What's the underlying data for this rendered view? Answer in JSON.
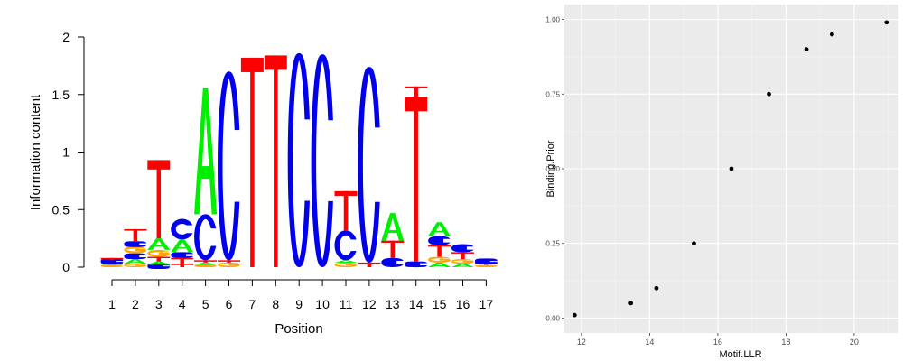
{
  "chart_data": [
    {
      "type": "sequence-logo",
      "xlabel": "Position",
      "ylabel": "Information content",
      "ylim": [
        0,
        2
      ],
      "yticks": [
        "0",
        "0.5",
        "1",
        "1.5",
        "2"
      ],
      "positions": [
        "1",
        "2",
        "3",
        "4",
        "5",
        "6",
        "7",
        "8",
        "9",
        "10",
        "11",
        "12",
        "13",
        "14",
        "15",
        "16",
        "17"
      ],
      "colors": {
        "A": "#00ee00",
        "C": "#0000ee",
        "G": "#ffa500",
        "T": "#ff0000"
      },
      "stacks": [
        [
          {
            "l": "G",
            "h": 0.02
          },
          {
            "l": "A",
            "h": 0.02
          },
          {
            "l": "C",
            "h": 0.02
          },
          {
            "l": "T",
            "h": 0.02
          }
        ],
        [
          {
            "l": "G",
            "h": 0.03
          },
          {
            "l": "A",
            "h": 0.04
          },
          {
            "l": "C",
            "h": 0.05
          },
          {
            "l": "G",
            "h": 0.06
          },
          {
            "l": "C",
            "h": 0.04
          },
          {
            "l": "T",
            "h": 0.11
          }
        ],
        [
          {
            "l": "C",
            "h": 0.02
          },
          {
            "l": "A",
            "h": 0.03
          },
          {
            "l": "T",
            "h": 0.04
          },
          {
            "l": "G",
            "h": 0.06
          },
          {
            "l": "A",
            "h": 0.1
          },
          {
            "l": "T",
            "h": 0.68
          }
        ],
        [
          {
            "l": "T",
            "h": 0.03
          },
          {
            "l": "T",
            "h": 0.05
          },
          {
            "l": "C",
            "h": 0.05
          },
          {
            "l": "A",
            "h": 0.11
          },
          {
            "l": "C",
            "h": 0.18
          }
        ],
        [
          {
            "l": "G",
            "h": 0.02
          },
          {
            "l": "A",
            "h": 0.02
          },
          {
            "l": "T",
            "h": 0.02
          },
          {
            "l": "C",
            "h": 0.4
          },
          {
            "l": "A",
            "h": 1.1
          }
        ],
        [
          {
            "l": "G",
            "h": 0.04
          },
          {
            "l": "T",
            "h": 0.02
          },
          {
            "l": "C",
            "h": 1.64
          }
        ],
        [
          {
            "l": "T",
            "h": 1.82
          }
        ],
        [
          {
            "l": "T",
            "h": 1.84
          }
        ],
        [
          {
            "l": "C",
            "h": 1.86
          }
        ],
        [
          {
            "l": "C",
            "h": 1.85
          }
        ],
        [
          {
            "l": "G",
            "h": 0.04
          },
          {
            "l": "A",
            "h": 0.02
          },
          {
            "l": "C",
            "h": 0.26
          },
          {
            "l": "T",
            "h": 0.34
          }
        ],
        [
          {
            "l": "T",
            "h": 0.04
          },
          {
            "l": "C",
            "h": 1.7
          }
        ],
        [
          {
            "l": "C",
            "h": 0.08
          },
          {
            "l": "T",
            "h": 0.15
          },
          {
            "l": "A",
            "h": 0.24
          }
        ],
        [
          {
            "l": "C",
            "h": 0.05
          },
          {
            "l": "T",
            "h": 1.43
          },
          {
            "l": "T",
            "h": 0.09
          }
        ],
        [
          {
            "l": "A",
            "h": 0.04
          },
          {
            "l": "G",
            "h": 0.05
          },
          {
            "l": "T",
            "h": 0.1
          },
          {
            "l": "C",
            "h": 0.08
          },
          {
            "l": "A",
            "h": 0.12
          }
        ],
        [
          {
            "l": "A",
            "h": 0.03
          },
          {
            "l": "G",
            "h": 0.04
          },
          {
            "l": "T",
            "h": 0.06
          },
          {
            "l": "C",
            "h": 0.07
          }
        ],
        [
          {
            "l": "G",
            "h": 0.02
          },
          {
            "l": "T",
            "h": 0.02
          },
          {
            "l": "C",
            "h": 0.02
          }
        ]
      ]
    },
    {
      "type": "scatter",
      "xlabel": "Motif.LLR",
      "ylabel": "Binding.Prior",
      "xlim": [
        11.5,
        21.3
      ],
      "ylim": [
        -0.05,
        1.05
      ],
      "xticks": [
        12,
        14,
        16,
        18,
        20
      ],
      "yticks": [
        "0.00",
        "0.25",
        "0.50",
        "0.75",
        "1.00"
      ],
      "points": [
        {
          "x": 11.8,
          "y": 0.01
        },
        {
          "x": 13.45,
          "y": 0.05
        },
        {
          "x": 14.2,
          "y": 0.1
        },
        {
          "x": 15.3,
          "y": 0.25
        },
        {
          "x": 16.4,
          "y": 0.5
        },
        {
          "x": 17.5,
          "y": 0.75
        },
        {
          "x": 18.6,
          "y": 0.9
        },
        {
          "x": 19.35,
          "y": 0.95
        },
        {
          "x": 20.95,
          "y": 0.99
        }
      ]
    }
  ]
}
